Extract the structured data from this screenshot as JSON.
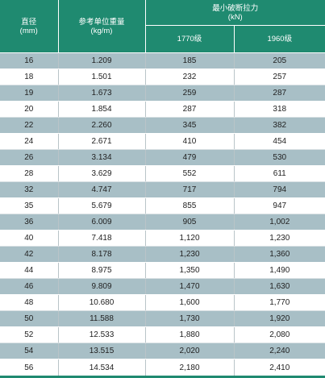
{
  "table": {
    "header": {
      "diameter": {
        "label": "直径",
        "unit": "(mm)"
      },
      "weight": {
        "label": "参考单位重量",
        "unit": "(kg/m)"
      },
      "force": {
        "label": "最小破断拉力",
        "unit": "(kN)"
      },
      "grades": [
        "1770级",
        "1960级"
      ]
    },
    "rows": [
      [
        "16",
        "1.209",
        "185",
        "205"
      ],
      [
        "18",
        "1.501",
        "232",
        "257"
      ],
      [
        "19",
        "1.673",
        "259",
        "287"
      ],
      [
        "20",
        "1.854",
        "287",
        "318"
      ],
      [
        "22",
        "2.260",
        "345",
        "382"
      ],
      [
        "24",
        "2.671",
        "410",
        "454"
      ],
      [
        "26",
        "3.134",
        "479",
        "530"
      ],
      [
        "28",
        "3.629",
        "552",
        "611"
      ],
      [
        "32",
        "4.747",
        "717",
        "794"
      ],
      [
        "35",
        "5.679",
        "855",
        "947"
      ],
      [
        "36",
        "6.009",
        "905",
        "1,002"
      ],
      [
        "40",
        "7.418",
        "1,120",
        "1,230"
      ],
      [
        "42",
        "8.178",
        "1,230",
        "1,360"
      ],
      [
        "44",
        "8.975",
        "1,350",
        "1,490"
      ],
      [
        "46",
        "9.809",
        "1,470",
        "1,630"
      ],
      [
        "48",
        "10.680",
        "1,600",
        "1,770"
      ],
      [
        "50",
        "11.588",
        "1,730",
        "1,920"
      ],
      [
        "52",
        "12.533",
        "1,880",
        "2,080"
      ],
      [
        "54",
        "13.515",
        "2,020",
        "2,240"
      ],
      [
        "56",
        "14.534",
        "2,180",
        "2,410"
      ]
    ]
  },
  "colors": {
    "header_bg": "#1f8a70",
    "stripe": "#a8bfc6",
    "row_alt": "#ffffff"
  }
}
